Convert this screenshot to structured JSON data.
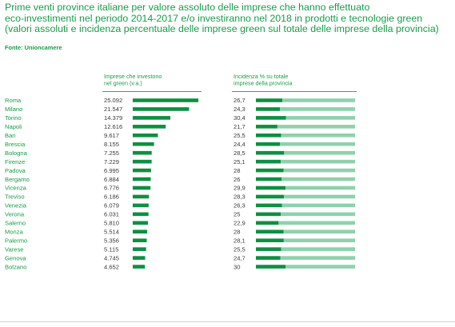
{
  "title_lines": [
    "Prime venti province italiane per valore assoluto delle imprese che hanno effettuato",
    "eco-investimenti nel periodo 2014-2017 e/o investiranno nel 2018 in prodotti e tecnologie green",
    "(valori assoluti e incidenza percentuale delle imprese green sul totale delle imprese della provincia)"
  ],
  "source": "Fonte: Unioncamere",
  "colors": {
    "accent": "#1a9c4a",
    "bar_dark": "#0e8f43",
    "bar_light": "#8fd1ad",
    "rule": "#7f7f7f"
  },
  "chart_data": [
    {
      "type": "bar",
      "orientation": "horizontal",
      "title": "Imprese che investono nel green (v.a.)",
      "title_lines": [
        "Imprese che investono",
        "nel green (v.a.)"
      ],
      "categories": [
        "Roma",
        "Milano",
        "Torino",
        "Napoli",
        "Bari",
        "Brescia",
        "Bologna",
        "Firenze",
        "Padova",
        "Bergamo",
        "Vicenza",
        "Treviso",
        "Venezia",
        "Verona",
        "Salerno",
        "Monza",
        "Palermo",
        "Varese",
        "Genova",
        "Bolzano"
      ],
      "value_labels": [
        "25.092",
        "21.547",
        "14.379",
        "12.616",
        "9.617",
        "8.155",
        "7.255",
        "7.229",
        "6.995",
        "6.884",
        "6.776",
        "6.186",
        "6.079",
        "6.031",
        "5.810",
        "5.514",
        "5.356",
        "5.115",
        "4.745",
        "4.652"
      ],
      "values": [
        25092,
        21547,
        14379,
        12616,
        9617,
        8155,
        7255,
        7229,
        6995,
        6884,
        6776,
        6186,
        6079,
        6031,
        5810,
        5514,
        5356,
        5115,
        4745,
        4652
      ],
      "xlim": [
        0,
        25092
      ]
    },
    {
      "type": "bar",
      "orientation": "horizontal",
      "stacked_to_100": true,
      "title": "Incidenza % su totale imprese della provincia",
      "title_lines": [
        "Incidenza % su totale",
        "imprese della provincia"
      ],
      "categories": [
        "Roma",
        "Milano",
        "Torino",
        "Napoli",
        "Bari",
        "Brescia",
        "Bologna",
        "Firenze",
        "Padova",
        "Bergamo",
        "Vicenza",
        "Treviso",
        "Venezia",
        "Verona",
        "Salerno",
        "Monza",
        "Palermo",
        "Varese",
        "Genova",
        "Bolzano"
      ],
      "value_labels": [
        "26,7",
        "24,3",
        "30,4",
        "21,7",
        "25,5",
        "24,4",
        "28,5",
        "25,1",
        "28",
        "26",
        "29,9",
        "28,3",
        "26,3",
        "25",
        "22,9",
        "28",
        "28,1",
        "25,5",
        "24,7",
        "30"
      ],
      "values": [
        26.7,
        24.3,
        30.4,
        21.7,
        25.5,
        24.4,
        28.5,
        25.1,
        28,
        26,
        29.9,
        28.3,
        26.3,
        25,
        22.9,
        28,
        28.1,
        25.5,
        24.7,
        30
      ],
      "xlim": [
        0,
        100
      ]
    }
  ]
}
